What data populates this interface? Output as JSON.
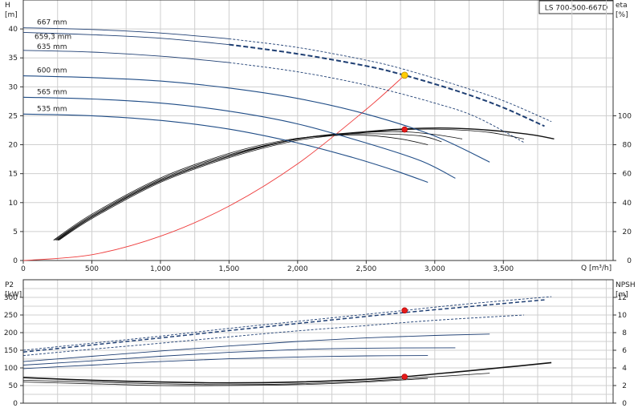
{
  "model_label": "LS 700-500-667D",
  "chart_data": [
    {
      "type": "line",
      "title": "",
      "xlabel": "Q [m³/h]",
      "ylabel": "H\n[m]",
      "ylabel_right": "eta\n[%]",
      "xlim": [
        0,
        4300
      ],
      "ylim": [
        0,
        45
      ],
      "ylim_right": [
        0,
        180
      ],
      "x_ticks": [
        "0",
        "500",
        "1,000",
        "1,500",
        "2,000",
        "2,500",
        "3,000",
        "3,500"
      ],
      "y_ticks": [
        "0",
        "5",
        "10",
        "15",
        "20",
        "25",
        "30",
        "35",
        "40"
      ],
      "y_right_ticks": [
        "0",
        "20",
        "40",
        "60",
        "80",
        "100"
      ],
      "grid": true,
      "head_curves": [
        {
          "name": "667 mm",
          "x": [
            0,
            500,
            1000,
            1500,
            2000,
            2500,
            2780,
            3200,
            3500,
            3850
          ],
          "y": [
            40.2,
            39.9,
            39.3,
            38.3,
            36.8,
            34.6,
            33.0,
            30.0,
            27.6,
            24.0
          ]
        },
        {
          "name": "659,3 mm",
          "x": [
            0,
            500,
            1000,
            1500,
            2000,
            2500,
            2780,
            3200,
            3500,
            3800
          ],
          "y": [
            39.4,
            39.0,
            38.4,
            37.3,
            35.7,
            33.6,
            32.0,
            29.0,
            26.4,
            23.2
          ]
        },
        {
          "name": "635 mm",
          "x": [
            0,
            500,
            1000,
            1500,
            2000,
            2500,
            3000,
            3300,
            3650
          ],
          "y": [
            36.3,
            36.0,
            35.3,
            34.2,
            32.6,
            30.3,
            27.2,
            24.8,
            20.4
          ]
        },
        {
          "name": "600 mm",
          "x": [
            0,
            500,
            1000,
            1500,
            2000,
            2500,
            3000,
            3400
          ],
          "y": [
            31.9,
            31.6,
            31.0,
            29.8,
            28.0,
            25.3,
            21.5,
            17.0
          ]
        },
        {
          "name": "565 mm",
          "x": [
            0,
            500,
            1000,
            1500,
            2000,
            2500,
            2900,
            3150
          ],
          "y": [
            28.2,
            27.9,
            27.2,
            25.8,
            23.6,
            20.3,
            17.2,
            14.2
          ]
        },
        {
          "name": "535 mm",
          "x": [
            0,
            500,
            1000,
            1500,
            2000,
            2400,
            2700,
            2950
          ],
          "y": [
            25.3,
            25.0,
            24.2,
            22.7,
            20.3,
            17.8,
            15.6,
            13.5
          ]
        }
      ],
      "efficiency_curves": [
        {
          "x": [
            250,
            500,
            1000,
            1500,
            2000,
            2500,
            2800,
            3100,
            3400,
            3700,
            3870
          ],
          "y": [
            14,
            30,
            55,
            72,
            84,
            89,
            91,
            91.5,
            90,
            87,
            84
          ]
        },
        {
          "x": [
            260,
            500,
            1000,
            1500,
            2000,
            2500,
            2800,
            3100,
            3400,
            3650
          ],
          "y": [
            14,
            29,
            54,
            71,
            83,
            88.5,
            90.5,
            90.5,
            88.5,
            84
          ]
        },
        {
          "x": [
            240,
            500,
            1000,
            1500,
            2000,
            2400,
            2750,
            3000,
            3200
          ],
          "y": [
            14,
            31,
            56,
            73,
            84,
            88,
            89,
            87,
            84
          ]
        },
        {
          "x": [
            230,
            500,
            1000,
            1500,
            2000,
            2300,
            2600,
            2900,
            3050
          ],
          "y": [
            14,
            31,
            56,
            73,
            84,
            87,
            87.5,
            86,
            82
          ]
        },
        {
          "x": [
            220,
            500,
            1000,
            1500,
            1900,
            2200,
            2500,
            2750,
            2950
          ],
          "y": [
            14,
            32,
            57,
            74,
            83,
            86,
            86.5,
            84,
            80
          ]
        }
      ],
      "system_curve": {
        "x": [
          0,
          500,
          1000,
          1500,
          2000,
          2500,
          2780
        ],
        "y": [
          0,
          1.0,
          4.2,
          9.4,
          16.7,
          26.1,
          32.0
        ]
      },
      "duty_point": {
        "x": 2780,
        "y": 32.0
      },
      "efficiency_point": {
        "x": 2780,
        "y": 90.5
      }
    },
    {
      "type": "line",
      "title": "",
      "xlabel": "",
      "ylabel": "P2\n[kW]",
      "ylabel_right": "NPSH\n[m]",
      "xlim": [
        0,
        4300
      ],
      "ylim": [
        0,
        350
      ],
      "ylim_right": [
        0,
        14
      ],
      "y_ticks": [
        "0",
        "50",
        "100",
        "150",
        "200",
        "250",
        "300"
      ],
      "y_right_ticks": [
        "0",
        "2",
        "4",
        "6",
        "8",
        "10",
        "12"
      ],
      "grid": true,
      "power_curves": [
        {
          "x": [
            0,
            500,
            1000,
            1500,
            2000,
            2500,
            2780,
            3200,
            3850
          ],
          "y": [
            150,
            170,
            190,
            212,
            232,
            252,
            263,
            280,
            302
          ]
        },
        {
          "x": [
            0,
            500,
            1000,
            1500,
            2000,
            2500,
            2780,
            3200,
            3800
          ],
          "y": [
            145,
            165,
            185,
            206,
            226,
            246,
            257,
            272,
            293
          ]
        },
        {
          "x": [
            0,
            500,
            1000,
            1500,
            2000,
            2500,
            3000,
            3650
          ],
          "y": [
            135,
            153,
            170,
            188,
            205,
            220,
            235,
            250
          ]
        },
        {
          "x": [
            0,
            500,
            1000,
            1500,
            2000,
            2500,
            3000,
            3400
          ],
          "y": [
            118,
            133,
            148,
            162,
            175,
            185,
            192,
            196
          ]
        },
        {
          "x": [
            0,
            500,
            1000,
            1500,
            2000,
            2500,
            3150
          ],
          "y": [
            108,
            120,
            133,
            144,
            152,
            156,
            157
          ]
        },
        {
          "x": [
            0,
            500,
            1000,
            1500,
            2000,
            2500,
            2950
          ],
          "y": [
            98,
            108,
            118,
            126,
            131,
            134,
            135
          ]
        }
      ],
      "npsh_curves": [
        {
          "x": [
            0,
            500,
            1000,
            1500,
            2000,
            2500,
            2780,
            3200,
            3600,
            3850
          ],
          "y": [
            2.9,
            2.6,
            2.4,
            2.3,
            2.4,
            2.7,
            3.0,
            3.6,
            4.2,
            4.6
          ]
        },
        {
          "x": [
            0,
            500,
            1000,
            1500,
            2000,
            2500,
            3000,
            3400
          ],
          "y": [
            2.6,
            2.4,
            2.2,
            2.1,
            2.2,
            2.5,
            3.0,
            3.4
          ]
        },
        {
          "x": [
            0,
            500,
            1000,
            1500,
            2000,
            2500,
            2950
          ],
          "y": [
            2.4,
            2.2,
            2.0,
            2.0,
            2.1,
            2.4,
            2.8
          ]
        }
      ],
      "duty_power_point": {
        "x": 2780,
        "y": 263
      },
      "duty_npsh_point": {
        "x": 2780,
        "y": 3.0
      }
    }
  ]
}
